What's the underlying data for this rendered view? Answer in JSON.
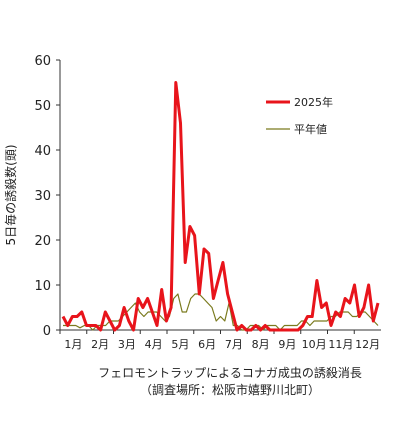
{
  "chart_data": {
    "type": "line",
    "ylabel": "5日毎の誘殺数(頭)",
    "ylim": [
      0,
      60
    ],
    "yticks": [
      "0",
      "10",
      "20",
      "30",
      "40",
      "50",
      "60"
    ],
    "xticks": [
      "1月",
      "2月",
      "3月",
      "4月",
      "5月",
      "6月",
      "7月",
      "8月",
      "9月",
      "10月",
      "11月",
      "12月"
    ],
    "legend_position": "right",
    "series": [
      {
        "name": "2025年",
        "color": "#e8141b",
        "values": [
          3,
          1,
          3,
          3,
          4,
          1,
          1,
          1,
          0,
          4,
          2,
          0,
          1,
          5,
          2,
          0,
          7,
          5,
          7,
          4,
          1,
          9,
          2,
          5,
          55,
          46,
          15,
          23,
          21,
          8,
          18,
          17,
          7,
          11,
          15,
          8,
          4,
          0,
          1,
          0,
          0,
          1,
          0,
          1,
          0,
          0,
          0,
          0,
          0,
          0,
          0,
          1,
          3,
          3,
          11,
          5,
          6,
          1,
          4,
          3,
          7,
          6,
          10,
          3,
          5,
          10,
          2,
          6
        ]
      },
      {
        "name": "平年値",
        "color": "#7a7a1e",
        "values": [
          1,
          1,
          1,
          1,
          0.5,
          1,
          1,
          0,
          1,
          1,
          1,
          2,
          2,
          2,
          3,
          4,
          5,
          6,
          4,
          3,
          4,
          4,
          4,
          3,
          2,
          3,
          7,
          8,
          4,
          4,
          7,
          8,
          8,
          7,
          6,
          5,
          2,
          3,
          2,
          6,
          1,
          1,
          0,
          0,
          1,
          1,
          1,
          0,
          1,
          1,
          1,
          0,
          1,
          1,
          1,
          1,
          2,
          2,
          1,
          2,
          2,
          2,
          2,
          3,
          3,
          4,
          4,
          4,
          3,
          3,
          4,
          4,
          3,
          2,
          1
        ]
      }
    ]
  },
  "caption": {
    "line1": "フェロモントラップによるコナガ成虫の誘殺消長",
    "line2": "（調査場所：松阪市嬉野川北町）"
  }
}
